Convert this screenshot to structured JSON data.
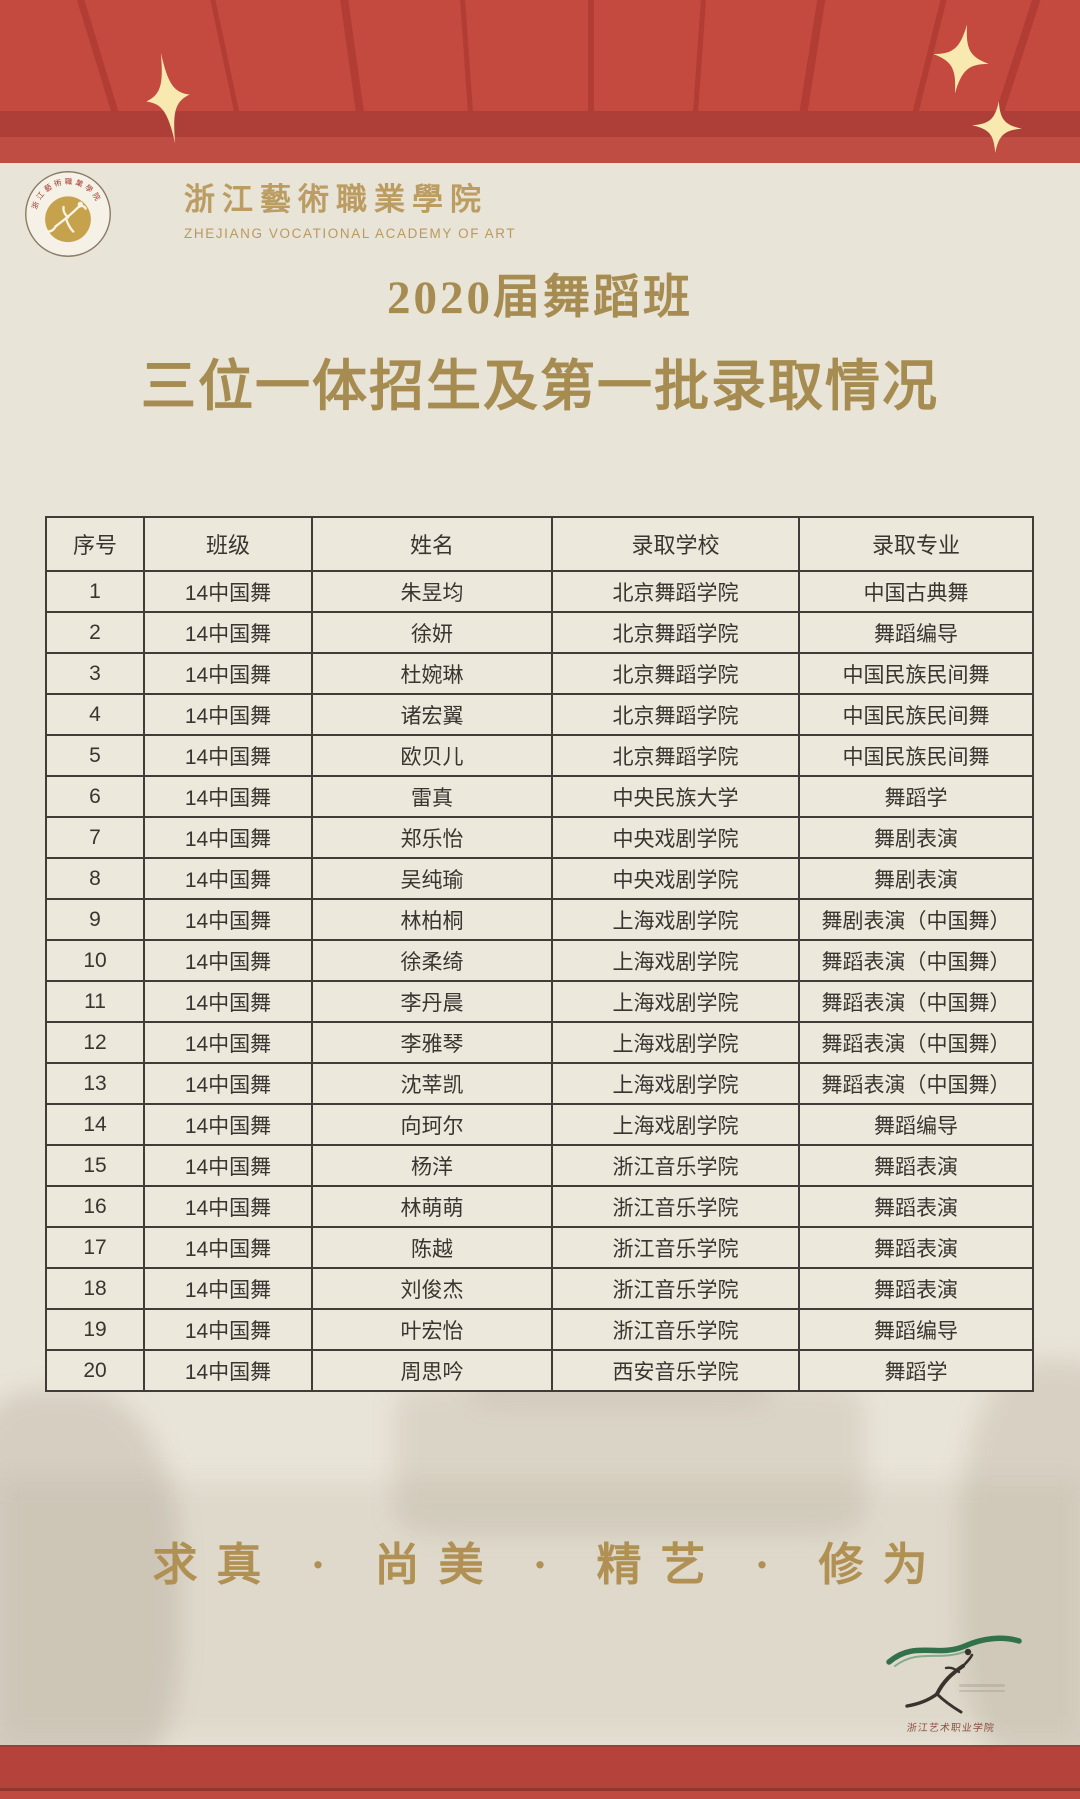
{
  "header": {
    "school_name_cn": "浙江藝術職業學院",
    "school_name_en": "ZHEJIANG VOCATIONAL ACADEMY OF ART",
    "emblem_text": "浙江藝術職業學院"
  },
  "title": {
    "line1": "2020届舞蹈班",
    "line2": "三位一体招生及第一批录取情况"
  },
  "table": {
    "columns": [
      "序号",
      "班级",
      "姓名",
      "录取学校",
      "录取专业"
    ],
    "rows": [
      [
        "1",
        "14中国舞",
        "朱昱均",
        "北京舞蹈学院",
        "中国古典舞"
      ],
      [
        "2",
        "14中国舞",
        "徐妍",
        "北京舞蹈学院",
        "舞蹈编导"
      ],
      [
        "3",
        "14中国舞",
        "杜婉琳",
        "北京舞蹈学院",
        "中国民族民间舞"
      ],
      [
        "4",
        "14中国舞",
        "诸宏翼",
        "北京舞蹈学院",
        "中国民族民间舞"
      ],
      [
        "5",
        "14中国舞",
        "欧贝儿",
        "北京舞蹈学院",
        "中国民族民间舞"
      ],
      [
        "6",
        "14中国舞",
        "雷真",
        "中央民族大学",
        "舞蹈学"
      ],
      [
        "7",
        "14中国舞",
        "郑乐怡",
        "中央戏剧学院",
        "舞剧表演"
      ],
      [
        "8",
        "14中国舞",
        "吴纯瑜",
        "中央戏剧学院",
        "舞剧表演"
      ],
      [
        "9",
        "14中国舞",
        "林柏桐",
        "上海戏剧学院",
        "舞剧表演（中国舞）"
      ],
      [
        "10",
        "14中国舞",
        "徐柔绮",
        "上海戏剧学院",
        "舞蹈表演（中国舞）"
      ],
      [
        "11",
        "14中国舞",
        "李丹晨",
        "上海戏剧学院",
        "舞蹈表演（中国舞）"
      ],
      [
        "12",
        "14中国舞",
        "李雅琴",
        "上海戏剧学院",
        "舞蹈表演（中国舞）"
      ],
      [
        "13",
        "14中国舞",
        "沈莘凯",
        "上海戏剧学院",
        "舞蹈表演（中国舞）"
      ],
      [
        "14",
        "14中国舞",
        "向珂尔",
        "上海戏剧学院",
        "舞蹈编导"
      ],
      [
        "15",
        "14中国舞",
        "杨洋",
        "浙江音乐学院",
        "舞蹈表演"
      ],
      [
        "16",
        "14中国舞",
        "林萌萌",
        "浙江音乐学院",
        "舞蹈表演"
      ],
      [
        "17",
        "14中国舞",
        "陈越",
        "浙江音乐学院",
        "舞蹈表演"
      ],
      [
        "18",
        "14中国舞",
        "刘俊杰",
        "浙江音乐学院",
        "舞蹈表演"
      ],
      [
        "19",
        "14中国舞",
        "叶宏怡",
        "浙江音乐学院",
        "舞蹈编导"
      ],
      [
        "20",
        "14中国舞",
        "周思吟",
        "西安音乐学院",
        "舞蹈学"
      ]
    ]
  },
  "motto": "求真 · 尚美 · 精艺 · 修为",
  "bottom_logo": {
    "caption": "浙江艺术职业学院"
  },
  "colors": {
    "banner_red": "#c4493f",
    "banner_band_dark": "#ad3f38",
    "banner_band_light": "#c04d44",
    "footer_red": "#b5423b",
    "footer_red_light": "#bf4a40",
    "sparkle_cream": "#f8e9b0",
    "title_gold": "#a68c50",
    "logo_gold": "#bb9d62",
    "emblem_disc_gold": "#c7a24c",
    "table_border": "#413c38",
    "table_text": "#3a3530",
    "cell_bg": "#ece8dc",
    "page_beige": "#e9e4d8",
    "ribbon_green": "#33714a"
  }
}
